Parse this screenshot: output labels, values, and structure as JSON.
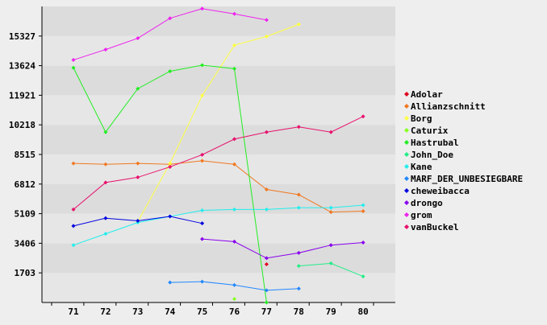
{
  "chart_data": {
    "type": "line",
    "title": "",
    "xlabel": "",
    "ylabel": "",
    "categories": [
      "71",
      "72",
      "73",
      "74",
      "75",
      "76",
      "77",
      "78",
      "79",
      "80"
    ],
    "y_ticks": [
      "1703",
      "3406",
      "5109",
      "6812",
      "8515",
      "10218",
      "11921",
      "13624",
      "15327"
    ],
    "ylim": [
      0,
      17030
    ],
    "grid": "horizontal bands",
    "legend_position": "right",
    "series": [
      {
        "name": "Adolar",
        "color": "#e0001c",
        "values": [
          null,
          null,
          null,
          null,
          null,
          null,
          2200,
          null,
          null,
          null
        ]
      },
      {
        "name": "Allianzschnitt",
        "color": "#f07820",
        "values": [
          8000,
          7950,
          8000,
          7950,
          8150,
          7950,
          6500,
          6200,
          5200,
          5250
        ]
      },
      {
        "name": "Borg",
        "color": "#ffff44",
        "values": [
          null,
          null,
          4650,
          8000,
          11900,
          14800,
          15300,
          16000,
          null,
          null
        ]
      },
      {
        "name": "Caturix",
        "color": "#88ff22",
        "values": [
          null,
          null,
          null,
          null,
          null,
          200,
          null,
          null,
          null,
          null
        ]
      },
      {
        "name": "Hastrubal",
        "color": "#22ee22",
        "values": [
          13500,
          9800,
          12300,
          13300,
          13650,
          13450,
          0,
          null,
          null,
          null
        ]
      },
      {
        "name": "John_Doe",
        "color": "#22ee88",
        "values": [
          null,
          null,
          null,
          null,
          null,
          null,
          null,
          2100,
          2250,
          1500
        ]
      },
      {
        "name": "Kane",
        "color": "#22eeee",
        "values": [
          3300,
          3950,
          4600,
          4950,
          5300,
          5350,
          5350,
          5450,
          5450,
          5600
        ]
      },
      {
        "name": "MARF_DER_UNBESIEGBARE",
        "color": "#2288ff",
        "values": [
          null,
          null,
          null,
          1150,
          1200,
          1000,
          700,
          800,
          null,
          null
        ]
      },
      {
        "name": "cheweibacca",
        "color": "#0000e0",
        "values": [
          4400,
          4850,
          4700,
          4950,
          4550,
          null,
          null,
          null,
          null,
          null
        ]
      },
      {
        "name": "drongo",
        "color": "#8800ee",
        "values": [
          null,
          null,
          null,
          null,
          3650,
          3500,
          2550,
          2850,
          3300,
          3450
        ]
      },
      {
        "name": "grom",
        "color": "#ee22ee",
        "values": [
          13950,
          14550,
          15200,
          16350,
          16900,
          16600,
          16250,
          null,
          null,
          null
        ]
      },
      {
        "name": "vanBuckel",
        "color": "#e8106c",
        "values": [
          5350,
          6900,
          7200,
          7800,
          8500,
          9400,
          9800,
          10100,
          9800,
          10700
        ]
      }
    ]
  }
}
